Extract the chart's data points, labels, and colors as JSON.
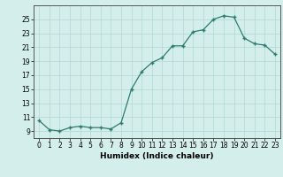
{
  "x": [
    0,
    1,
    2,
    3,
    4,
    5,
    6,
    7,
    8,
    9,
    10,
    11,
    12,
    13,
    14,
    15,
    16,
    17,
    18,
    19,
    20,
    21,
    22,
    23
  ],
  "y": [
    10.5,
    9.2,
    9.0,
    9.5,
    9.7,
    9.5,
    9.5,
    9.3,
    10.2,
    15.0,
    17.5,
    18.8,
    19.5,
    21.2,
    21.2,
    23.2,
    23.5,
    25.0,
    25.5,
    25.3,
    22.3,
    21.5,
    21.3,
    20.0
  ],
  "line_color": "#2d7d6e",
  "marker_color": "#2d7d6e",
  "bg_color": "#d4eeec",
  "grid_color": "#b0d8d4",
  "xlabel": "Humidex (Indice chaleur)",
  "xlim": [
    -0.5,
    23.5
  ],
  "ylim": [
    8.0,
    27.0
  ],
  "yticks": [
    9,
    11,
    13,
    15,
    17,
    19,
    21,
    23,
    25
  ],
  "xticks": [
    0,
    1,
    2,
    3,
    4,
    5,
    6,
    7,
    8,
    9,
    10,
    11,
    12,
    13,
    14,
    15,
    16,
    17,
    18,
    19,
    20,
    21,
    22,
    23
  ],
  "tick_fontsize": 5.5,
  "label_fontsize": 6.5
}
